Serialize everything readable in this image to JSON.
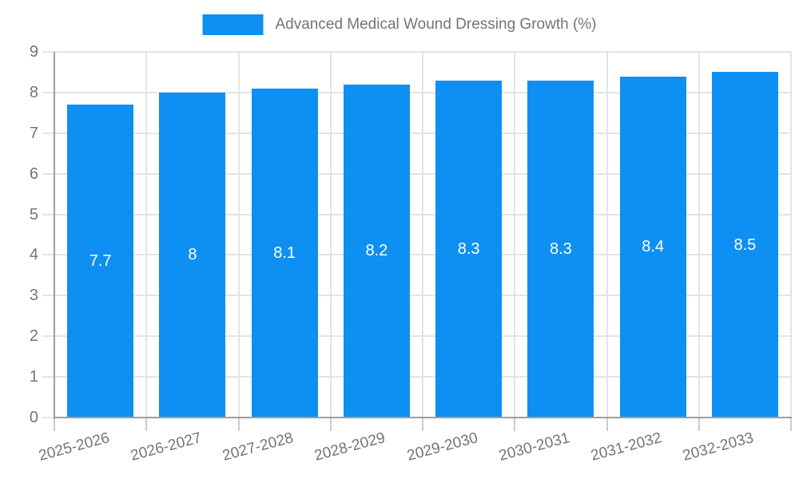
{
  "legend": {
    "label": "Advanced Medical Wound Dressing Growth (%)"
  },
  "colors": {
    "bar": "#0e90f2",
    "grid": "#e4e4e4",
    "axis": "#9e9e9e",
    "tick": "#cccccc",
    "axis_text": "#757575",
    "bar_label_text": "#ffffff",
    "background": "#ffffff"
  },
  "chart_data": {
    "type": "bar",
    "title": "Advanced Medical Wound Dressing Growth (%)",
    "categories": [
      "2025-2026",
      "2026-2027",
      "2027-2028",
      "2028-2029",
      "2029-2030",
      "2030-2031",
      "2031-2032",
      "2032-2033"
    ],
    "values": [
      7.7,
      8,
      8.1,
      8.2,
      8.3,
      8.3,
      8.4,
      8.5
    ],
    "bar_labels": [
      "7.7",
      "8",
      "8.1",
      "8.2",
      "8.3",
      "8.3",
      "8.4",
      "8.5"
    ],
    "xlabel": "",
    "ylabel": "",
    "ylim": [
      0,
      9
    ],
    "yticks": [
      0,
      1,
      2,
      3,
      4,
      5,
      6,
      7,
      8,
      9
    ],
    "grid": true,
    "legend_position": "top-center",
    "x_label_rotation_deg": -15
  }
}
